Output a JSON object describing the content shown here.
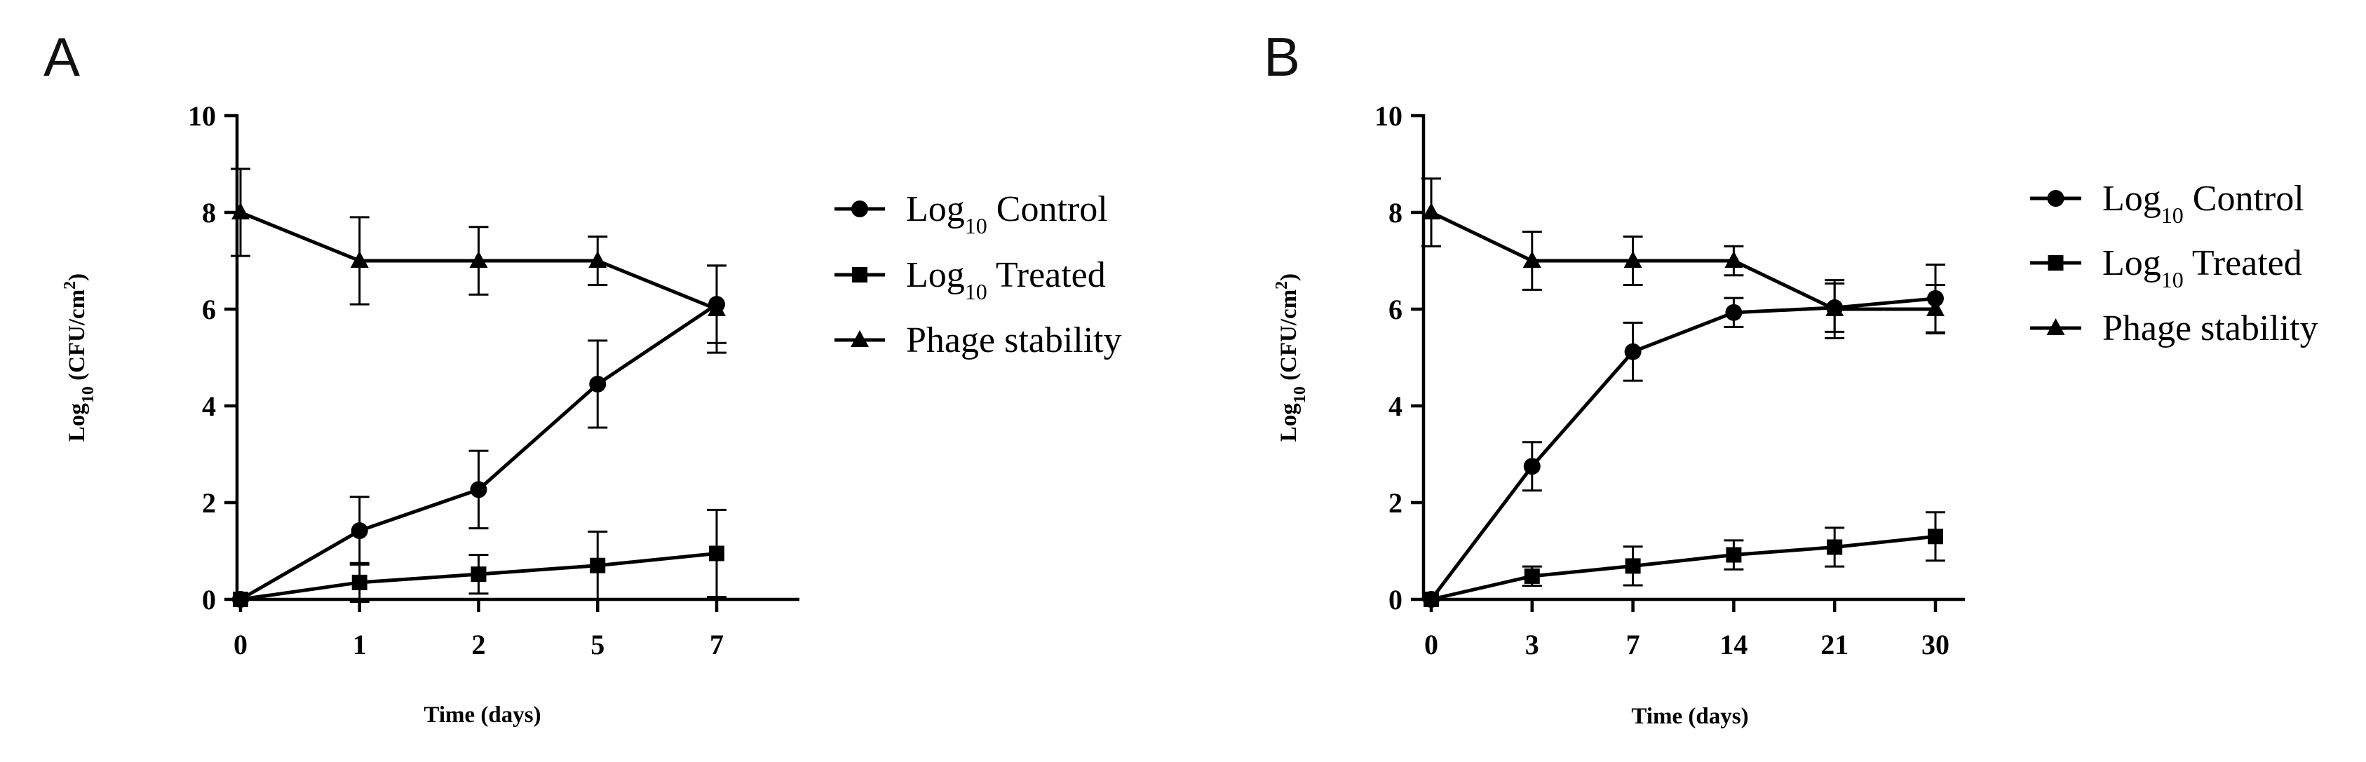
{
  "chart_data": [
    {
      "type": "line",
      "panel_label": "A",
      "xlabel": "Time (days)",
      "ylabel": "Log10 (CFU/cm2)",
      "ylabel_parts": {
        "base": "Log",
        "base_sub": "10",
        "mid": " (CFU/cm",
        "sup": "2",
        "end": ")"
      },
      "categories": [
        "0",
        "1",
        "2",
        "5",
        "7"
      ],
      "ylim": [
        0,
        10
      ],
      "yticks": [
        "0",
        "2",
        "4",
        "6",
        "8",
        "10"
      ],
      "series": [
        {
          "name": "Log10 Control",
          "label_base": "Log",
          "label_sub": "10",
          "label_rest": " Control",
          "marker": "circle",
          "values": [
            0,
            1.42,
            2.27,
            4.45,
            6.1
          ],
          "errors": [
            0,
            0.7,
            0.8,
            0.9,
            0.8
          ]
        },
        {
          "name": "Log10 Treated",
          "label_base": "Log",
          "label_sub": "10",
          "label_rest": "  Treated",
          "marker": "square",
          "values": [
            0,
            0.35,
            0.52,
            0.7,
            0.95
          ],
          "errors": [
            0,
            0.4,
            0.4,
            0.7,
            0.9
          ]
        },
        {
          "name": "Phage stability",
          "label_base": "Phage stability",
          "label_sub": "",
          "label_rest": "",
          "marker": "triangle",
          "values": [
            8,
            7,
            7,
            7,
            6
          ],
          "errors": [
            0.9,
            0.9,
            0.7,
            0.5,
            0.9
          ]
        }
      ]
    },
    {
      "type": "line",
      "panel_label": "B",
      "xlabel": "Time (days)",
      "ylabel": "Log10 (CFU/cm2)",
      "ylabel_parts": {
        "base": "Log",
        "base_sub": "10",
        "mid": " (CFU/cm",
        "sup": "2",
        "end": ")"
      },
      "categories": [
        "0",
        "3",
        "7",
        "14",
        "21",
        "30"
      ],
      "ylim": [
        0,
        10
      ],
      "yticks": [
        "0",
        "2",
        "4",
        "6",
        "8",
        "10"
      ],
      "series": [
        {
          "name": "Log10 Control",
          "label_base": "Log",
          "label_sub": "10",
          "label_rest": " Control",
          "marker": "circle",
          "values": [
            0,
            2.75,
            5.12,
            5.93,
            6.03,
            6.22
          ],
          "errors": [
            0,
            0.5,
            0.6,
            0.3,
            0.5,
            0.7
          ]
        },
        {
          "name": "Log10 Treated",
          "label_base": "Log",
          "label_sub": "10",
          "label_rest": "  Treated",
          "marker": "square",
          "values": [
            0,
            0.48,
            0.69,
            0.92,
            1.08,
            1.3
          ],
          "errors": [
            0,
            0.2,
            0.4,
            0.3,
            0.4,
            0.5
          ]
        },
        {
          "name": "Phage stability",
          "label_base": "Phage stability",
          "label_sub": "",
          "label_rest": "",
          "marker": "triangle",
          "values": [
            8,
            7,
            7,
            7,
            6,
            6
          ],
          "errors": [
            0.7,
            0.6,
            0.5,
            0.3,
            0.6,
            0.5
          ]
        }
      ]
    }
  ]
}
